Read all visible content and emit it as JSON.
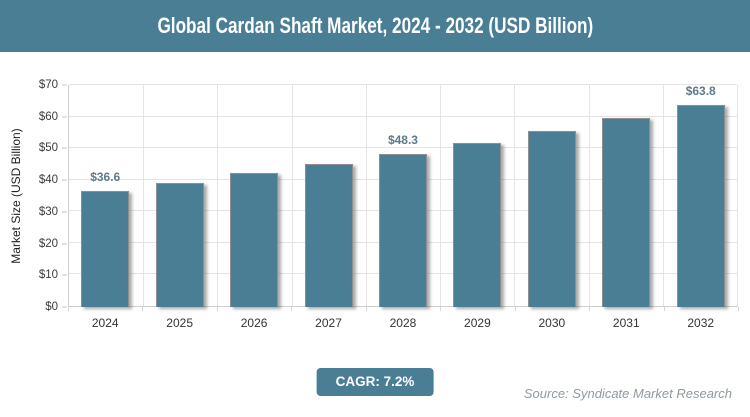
{
  "header": {
    "title": "Global Cardan Shaft Market, 2024 - 2032 (USD Billion)"
  },
  "chart_data": {
    "type": "bar",
    "title": "Global Cardan Shaft Market, 2024 - 2032 (USD Billion)",
    "categories": [
      "2024",
      "2025",
      "2026",
      "2027",
      "2028",
      "2029",
      "2030",
      "2031",
      "2032"
    ],
    "values": [
      36.6,
      39.2,
      42.1,
      45.1,
      48.3,
      51.8,
      55.5,
      59.5,
      63.8
    ],
    "point_labels": [
      "$36.6",
      "",
      "",
      "",
      "$48.3",
      "",
      "",
      "",
      "$63.8"
    ],
    "xlabel": "",
    "ylabel": "Market Size (USD Billion)",
    "ylim": [
      0,
      70
    ],
    "ytick_step": 10,
    "ytick_labels": [
      "$0",
      "$10",
      "$20",
      "$30",
      "$40",
      "$50",
      "$60",
      "$70"
    ],
    "grid": true,
    "legend": "none",
    "bar_color": "#4a7e95"
  },
  "footer": {
    "cagr_label": "CAGR: 7.2%",
    "source": "Source: Syndicate Market Research"
  },
  "colors": {
    "accent_teal": "#4a7e95",
    "grid_line": "#e4e4e4",
    "axis_line": "#cfcfcf",
    "tick_text": "#3c3c3c",
    "bar_value_label": "#5d7a8c",
    "source_text": "#8e9aa4",
    "title_text": "#ffffff"
  }
}
